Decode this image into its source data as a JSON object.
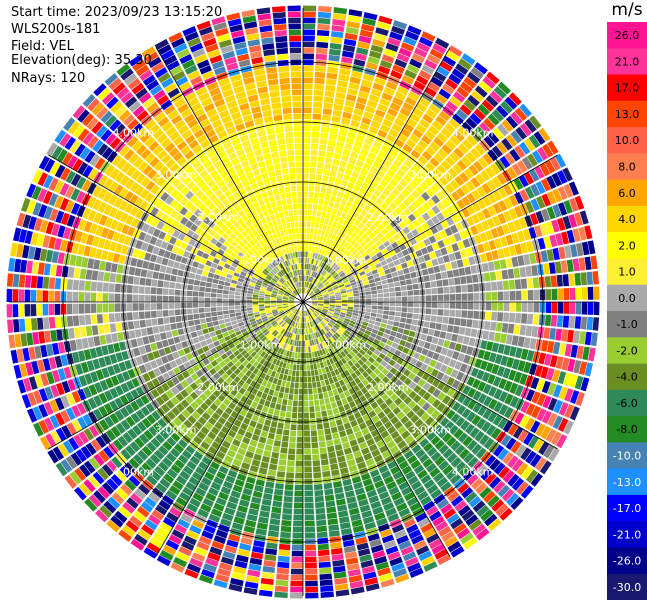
{
  "info": {
    "start_time": "Start time: 2023/09/23 13:15:20",
    "station": "WLS200s-181",
    "field": "Field: VEL",
    "elevation": "Elevation(deg): 35.30",
    "nrays": "NRays: 120"
  },
  "colorbar": {
    "unit": "m/s",
    "ticks": [
      "26.0",
      "21.0",
      "17.0",
      "13.0",
      "10.0",
      "8.0",
      "6.0",
      "4.0",
      "2.0",
      "1.0",
      "0.0",
      "-1.0",
      "-2.0",
      "-4.0",
      "-6.0",
      "-8.0",
      "-10.0",
      "-13.0",
      "-17.0",
      "-21.0",
      "-26.0",
      "-30.0"
    ],
    "colors": [
      "#ff1493",
      "#ff3399",
      "#ff0000",
      "#ff4500",
      "#ff6347",
      "#ff7f50",
      "#ffa500",
      "#ffd700",
      "#ffff00",
      "#ffef33",
      "#a9a9a9",
      "#808080",
      "#9acd32",
      "#6b8e23",
      "#2e8b57",
      "#228b22",
      "#4682b4",
      "#1e90ff",
      "#0000ff",
      "#0000cd",
      "#00008b",
      "#191970"
    ]
  },
  "chart_data": {
    "type": "heatmap",
    "projection": "polar (PPI)",
    "field": "VEL",
    "units": "m/s",
    "nrays": 120,
    "range_rings_km": [
      1.0,
      2.0,
      3.0,
      4.0
    ],
    "ring_labels": [
      "1.00km",
      "2.00km",
      "3.00km",
      "4.00km"
    ],
    "max_range_km": 4.9,
    "radial_lines_deg": [
      0,
      30,
      60,
      90,
      120,
      150,
      180,
      210,
      240,
      270,
      300,
      330
    ],
    "description_zones": [
      {
        "range_km": [
          0,
          0.8
        ],
        "pattern": "mixed yellow/gray/green near center"
      },
      {
        "range_km": [
          0.8,
          3.0
        ],
        "north_half_mps": "1 to 4 (yellow)",
        "south_half_mps": "-1 to -4 (yellow-green)",
        "east_west": "near 0 (gray)"
      },
      {
        "range_km": [
          3.0,
          3.9
        ],
        "north_mps": "4 to 8 (orange)",
        "south_mps": "-4 to -8 (green)"
      },
      {
        "range_km": [
          3.9,
          4.9
        ],
        "pattern": "noise: random velocities across full scale"
      }
    ]
  }
}
